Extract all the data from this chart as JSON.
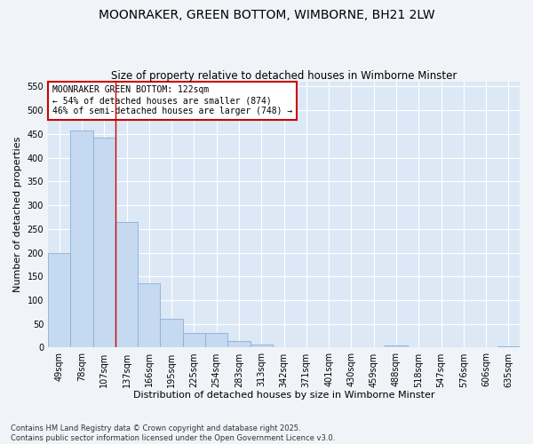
{
  "title": "MOONRAKER, GREEN BOTTOM, WIMBORNE, BH21 2LW",
  "subtitle": "Size of property relative to detached houses in Wimborne Minster",
  "xlabel": "Distribution of detached houses by size in Wimborne Minster",
  "ylabel": "Number of detached properties",
  "categories": [
    "49sqm",
    "78sqm",
    "107sqm",
    "137sqm",
    "166sqm",
    "195sqm",
    "225sqm",
    "254sqm",
    "283sqm",
    "313sqm",
    "342sqm",
    "371sqm",
    "401sqm",
    "430sqm",
    "459sqm",
    "488sqm",
    "518sqm",
    "547sqm",
    "576sqm",
    "606sqm",
    "635sqm"
  ],
  "values": [
    200,
    457,
    442,
    265,
    135,
    60,
    30,
    30,
    14,
    6,
    0,
    0,
    0,
    0,
    0,
    4,
    0,
    0,
    0,
    0,
    3
  ],
  "bar_color": "#c5d9f0",
  "bar_edge_color": "#8ab0d8",
  "vline_x": 2.5,
  "vline_color": "#cc0000",
  "property_label": "MOONRAKER GREEN BOTTOM: 122sqm",
  "smaller_pct": 54,
  "smaller_count": 874,
  "larger_pct": 46,
  "larger_count": 748,
  "annotation_box_edge": "#cc0000",
  "ylim": [
    0,
    560
  ],
  "yticks": [
    0,
    50,
    100,
    150,
    200,
    250,
    300,
    350,
    400,
    450,
    500,
    550
  ],
  "footer": "Contains HM Land Registry data © Crown copyright and database right 2025.\nContains public sector information licensed under the Open Government Licence v3.0.",
  "fig_bg_color": "#f0f4f8",
  "plot_bg_color": "#dce8f5",
  "grid_color": "#ffffff",
  "title_fontsize": 10,
  "subtitle_fontsize": 8.5,
  "axis_label_fontsize": 8,
  "tick_fontsize": 7,
  "annotation_fontsize": 7,
  "footer_fontsize": 6
}
